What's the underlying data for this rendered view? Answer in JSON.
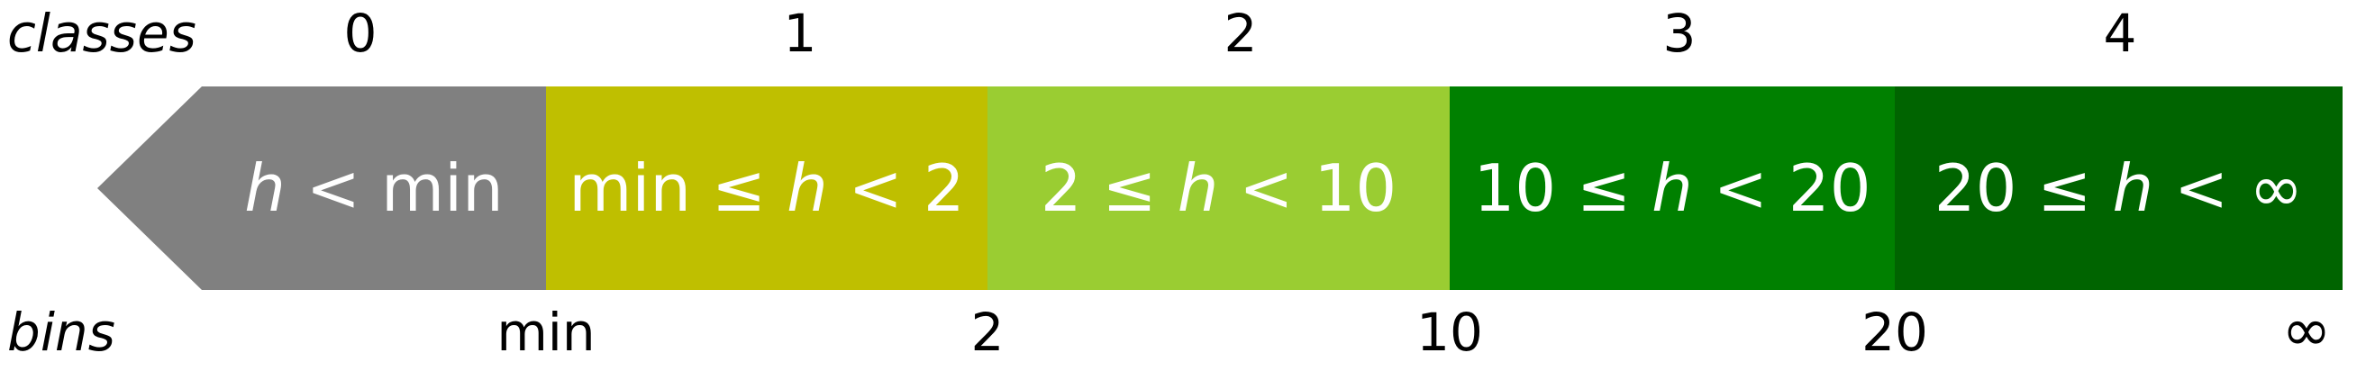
{
  "labels": {
    "classes": "classes",
    "bins": "bins"
  },
  "classes": [
    "0",
    "1",
    "2",
    "3",
    "4"
  ],
  "bins": [
    "min",
    "2",
    "10",
    "20",
    "∞"
  ],
  "segments": [
    {
      "pre": "",
      "var": "h",
      "post": " < min",
      "color": "#808080"
    },
    {
      "pre": "min ≤ ",
      "var": "h",
      "post": " < 2",
      "color": "#bfbf00"
    },
    {
      "pre": "2 ≤ ",
      "var": "h",
      "post": " < 10",
      "color": "#9acd32"
    },
    {
      "pre": "10 ≤ ",
      "var": "h",
      "post": " < 20",
      "color": "#008000"
    },
    {
      "pre": "20 ≤ ",
      "var": "h",
      "post": " < ∞",
      "color": "#006400"
    }
  ]
}
